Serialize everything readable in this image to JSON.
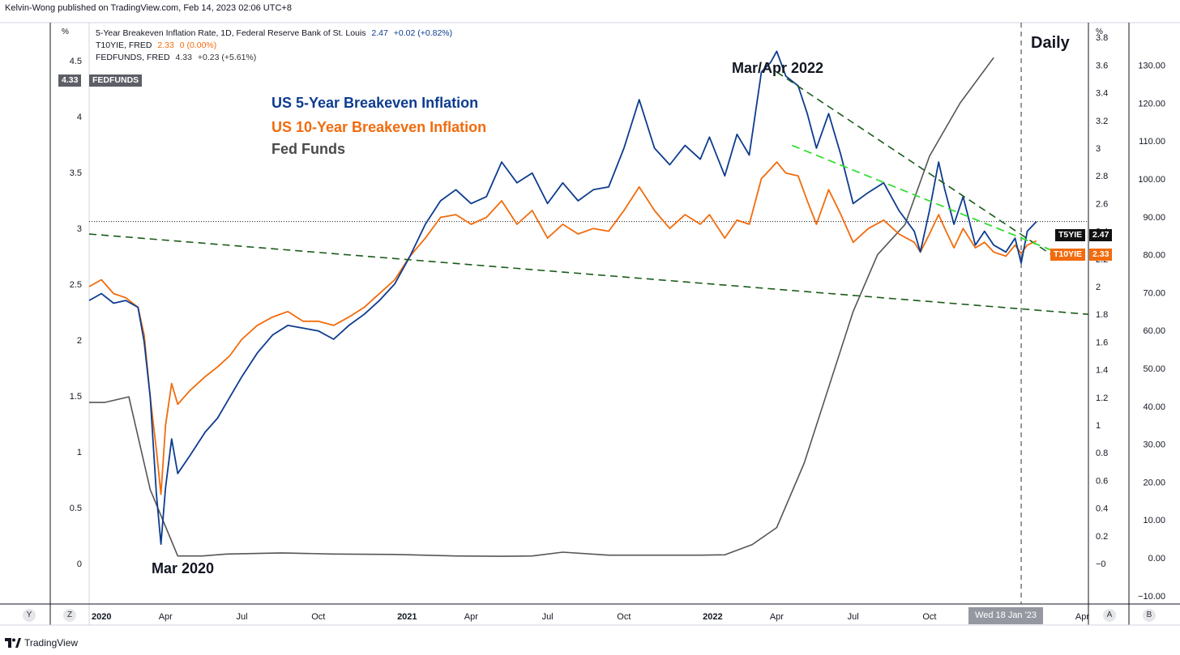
{
  "header": {
    "publisher": "Kelvin-Wong published on TradingView.com, Feb 14, 2023 02:06 UTC+8"
  },
  "legend": {
    "rows": [
      {
        "name": "5-Year Breakeven Inflation Rate, 1D, Federal Reserve Bank of St. Louis",
        "value": "2.47",
        "change": "+0.02 (+0.82%)"
      },
      {
        "name": "T10YIE, FRED",
        "value": "2.33",
        "change": "0 (0.00%)"
      },
      {
        "name": "FEDFUNDS, FRED",
        "value": "4.33",
        "change": "+0.23 (+5.61%)"
      }
    ]
  },
  "annotations": {
    "title_5y": "US 5-Year Breakeven Inflation",
    "title_10y": "US 10-Year Breakeven Inflation",
    "title_ff": "Fed Funds",
    "mar2020": "Mar 2020",
    "mar2022": "Mar/Apr 2022",
    "timeframe": "Daily"
  },
  "badges": {
    "fedfunds_value": "4.33",
    "fedfunds_name": "FEDFUNDS",
    "t5_name": "T5YIE",
    "t5_value": "2.47",
    "t10_name": "T10YIE",
    "t10_value": "2.33"
  },
  "crosshair_date": "Wed 18 Jan '23",
  "bottom_buttons": {
    "y": "Y",
    "z": "Z",
    "a": "A",
    "b": "B"
  },
  "footer": {
    "brand": "TradingView"
  },
  "colors": {
    "t5": "#0d3c8f",
    "t10": "#f26b0c",
    "fedfunds": "#555555",
    "trend_dark": "#1a5c1a",
    "trend_light": "#33dd33"
  },
  "chart_data": {
    "type": "line",
    "left_axis": {
      "unit": "%",
      "ticks": [
        "4.5",
        "4",
        "3.5",
        "3",
        "2.5",
        "2",
        "1.5",
        "1",
        "0.5",
        "0"
      ],
      "range": [
        -0.1,
        4.9
      ]
    },
    "mid_axis": {
      "unit": "%",
      "ticks": [
        "3.8",
        "3.6",
        "3.4",
        "3.2",
        "3",
        "2.8",
        "2.6",
        "2.4",
        "2.2",
        "2",
        "1.8",
        "1.6",
        "1.4",
        "1.2",
        "1",
        "0.8",
        "0.6",
        "0.4",
        "0.2",
        "−0"
      ],
      "range": [
        -0.1,
        3.9
      ]
    },
    "right_axis": {
      "ticks": [
        "130.00",
        "120.00",
        "110.00",
        "100.00",
        "90.00",
        "80.00",
        "70.00",
        "60.00",
        "50.00",
        "40.00",
        "30.00",
        "20.00",
        "10.00",
        "0.00",
        "−10.00"
      ],
      "range": [
        -10,
        130
      ]
    },
    "x_ticks": [
      {
        "label": "2020",
        "t": 2020.0,
        "bold": true
      },
      {
        "label": "Apr",
        "t": 2020.25
      },
      {
        "label": "Jul",
        "t": 2020.5
      },
      {
        "label": "Oct",
        "t": 2020.75
      },
      {
        "label": "2021",
        "t": 2021.0,
        "bold": true
      },
      {
        "label": "Apr",
        "t": 2021.25
      },
      {
        "label": "Jul",
        "t": 2021.5
      },
      {
        "label": "Oct",
        "t": 2021.75
      },
      {
        "label": "2022",
        "t": 2022.0,
        "bold": true
      },
      {
        "label": "Apr",
        "t": 2022.25
      },
      {
        "label": "Jul",
        "t": 2022.5
      },
      {
        "label": "Oct",
        "t": 2022.75
      },
      {
        "label": "Apr",
        "t": 2023.25
      }
    ],
    "x_range": [
      2020.0,
      2023.27
    ],
    "series": [
      {
        "name": "T5YIE",
        "color": "#0d3c8f",
        "points": [
          [
            2020.0,
            1.9
          ],
          [
            2020.04,
            1.95
          ],
          [
            2020.08,
            1.88
          ],
          [
            2020.12,
            1.9
          ],
          [
            2020.16,
            1.85
          ],
          [
            2020.18,
            1.6
          ],
          [
            2020.2,
            1.2
          ],
          [
            2020.22,
            0.5
          ],
          [
            2020.235,
            0.14
          ],
          [
            2020.25,
            0.55
          ],
          [
            2020.27,
            0.9
          ],
          [
            2020.29,
            0.65
          ],
          [
            2020.33,
            0.78
          ],
          [
            2020.38,
            0.95
          ],
          [
            2020.42,
            1.05
          ],
          [
            2020.46,
            1.2
          ],
          [
            2020.5,
            1.35
          ],
          [
            2020.55,
            1.52
          ],
          [
            2020.6,
            1.65
          ],
          [
            2020.65,
            1.72
          ],
          [
            2020.7,
            1.7
          ],
          [
            2020.75,
            1.68
          ],
          [
            2020.8,
            1.62
          ],
          [
            2020.85,
            1.72
          ],
          [
            2020.9,
            1.8
          ],
          [
            2020.95,
            1.9
          ],
          [
            2021.0,
            2.02
          ],
          [
            2021.05,
            2.22
          ],
          [
            2021.1,
            2.45
          ],
          [
            2021.15,
            2.62
          ],
          [
            2021.2,
            2.7
          ],
          [
            2021.25,
            2.6
          ],
          [
            2021.3,
            2.65
          ],
          [
            2021.35,
            2.9
          ],
          [
            2021.4,
            2.75
          ],
          [
            2021.45,
            2.82
          ],
          [
            2021.5,
            2.6
          ],
          [
            2021.55,
            2.75
          ],
          [
            2021.6,
            2.62
          ],
          [
            2021.65,
            2.7
          ],
          [
            2021.7,
            2.72
          ],
          [
            2021.75,
            3.0
          ],
          [
            2021.8,
            3.35
          ],
          [
            2021.85,
            3.0
          ],
          [
            2021.9,
            2.88
          ],
          [
            2021.95,
            3.02
          ],
          [
            2022.0,
            2.92
          ],
          [
            2022.03,
            3.08
          ],
          [
            2022.08,
            2.8
          ],
          [
            2022.12,
            3.1
          ],
          [
            2022.16,
            2.95
          ],
          [
            2022.2,
            3.55
          ],
          [
            2022.23,
            3.62
          ],
          [
            2022.25,
            3.7
          ],
          [
            2022.28,
            3.52
          ],
          [
            2022.32,
            3.45
          ],
          [
            2022.35,
            3.25
          ],
          [
            2022.38,
            3.0
          ],
          [
            2022.42,
            3.25
          ],
          [
            2022.46,
            2.95
          ],
          [
            2022.5,
            2.6
          ],
          [
            2022.55,
            2.68
          ],
          [
            2022.6,
            2.75
          ],
          [
            2022.65,
            2.55
          ],
          [
            2022.7,
            2.4
          ],
          [
            2022.72,
            2.25
          ],
          [
            2022.75,
            2.55
          ],
          [
            2022.78,
            2.9
          ],
          [
            2022.8,
            2.7
          ],
          [
            2022.83,
            2.45
          ],
          [
            2022.86,
            2.65
          ],
          [
            2022.9,
            2.3
          ],
          [
            2022.93,
            2.4
          ],
          [
            2022.96,
            2.3
          ],
          [
            2023.0,
            2.25
          ],
          [
            2023.03,
            2.35
          ],
          [
            2023.05,
            2.17
          ],
          [
            2023.07,
            2.4
          ],
          [
            2023.1,
            2.47
          ]
        ]
      },
      {
        "name": "T10YIE",
        "color": "#f26b0c",
        "points": [
          [
            2020.0,
            2.0
          ],
          [
            2020.04,
            2.05
          ],
          [
            2020.08,
            1.95
          ],
          [
            2020.12,
            1.92
          ],
          [
            2020.16,
            1.85
          ],
          [
            2020.18,
            1.65
          ],
          [
            2020.2,
            1.2
          ],
          [
            2020.22,
            0.82
          ],
          [
            2020.235,
            0.5
          ],
          [
            2020.25,
            1.0
          ],
          [
            2020.27,
            1.3
          ],
          [
            2020.29,
            1.15
          ],
          [
            2020.33,
            1.25
          ],
          [
            2020.38,
            1.35
          ],
          [
            2020.42,
            1.42
          ],
          [
            2020.46,
            1.5
          ],
          [
            2020.5,
            1.62
          ],
          [
            2020.55,
            1.72
          ],
          [
            2020.6,
            1.78
          ],
          [
            2020.65,
            1.82
          ],
          [
            2020.7,
            1.75
          ],
          [
            2020.75,
            1.75
          ],
          [
            2020.8,
            1.72
          ],
          [
            2020.85,
            1.78
          ],
          [
            2020.9,
            1.85
          ],
          [
            2020.95,
            1.95
          ],
          [
            2021.0,
            2.05
          ],
          [
            2021.05,
            2.22
          ],
          [
            2021.1,
            2.35
          ],
          [
            2021.15,
            2.5
          ],
          [
            2021.2,
            2.52
          ],
          [
            2021.25,
            2.45
          ],
          [
            2021.3,
            2.5
          ],
          [
            2021.35,
            2.62
          ],
          [
            2021.4,
            2.45
          ],
          [
            2021.45,
            2.55
          ],
          [
            2021.5,
            2.35
          ],
          [
            2021.55,
            2.45
          ],
          [
            2021.6,
            2.38
          ],
          [
            2021.65,
            2.42
          ],
          [
            2021.7,
            2.4
          ],
          [
            2021.75,
            2.55
          ],
          [
            2021.8,
            2.72
          ],
          [
            2021.85,
            2.55
          ],
          [
            2021.9,
            2.42
          ],
          [
            2021.95,
            2.52
          ],
          [
            2022.0,
            2.45
          ],
          [
            2022.03,
            2.52
          ],
          [
            2022.08,
            2.35
          ],
          [
            2022.12,
            2.48
          ],
          [
            2022.16,
            2.45
          ],
          [
            2022.2,
            2.78
          ],
          [
            2022.23,
            2.85
          ],
          [
            2022.25,
            2.9
          ],
          [
            2022.28,
            2.82
          ],
          [
            2022.32,
            2.8
          ],
          [
            2022.35,
            2.62
          ],
          [
            2022.38,
            2.45
          ],
          [
            2022.42,
            2.7
          ],
          [
            2022.46,
            2.52
          ],
          [
            2022.5,
            2.32
          ],
          [
            2022.55,
            2.42
          ],
          [
            2022.6,
            2.48
          ],
          [
            2022.65,
            2.38
          ],
          [
            2022.7,
            2.32
          ],
          [
            2022.72,
            2.25
          ],
          [
            2022.75,
            2.38
          ],
          [
            2022.78,
            2.52
          ],
          [
            2022.8,
            2.42
          ],
          [
            2022.83,
            2.28
          ],
          [
            2022.86,
            2.42
          ],
          [
            2022.9,
            2.28
          ],
          [
            2022.93,
            2.32
          ],
          [
            2022.96,
            2.25
          ],
          [
            2023.0,
            2.22
          ],
          [
            2023.03,
            2.3
          ],
          [
            2023.05,
            2.24
          ],
          [
            2023.07,
            2.3
          ],
          [
            2023.1,
            2.33
          ]
        ]
      },
      {
        "name": "FEDFUNDS",
        "color": "#555555",
        "axis": "right",
        "points": [
          [
            2020.0,
            41.0
          ],
          [
            2020.05,
            41.0
          ],
          [
            2020.13,
            42.5
          ],
          [
            2020.2,
            18.0
          ],
          [
            2020.29,
            0.5
          ],
          [
            2020.37,
            0.5
          ],
          [
            2020.45,
            1.0
          ],
          [
            2020.63,
            1.3
          ],
          [
            2020.8,
            1.0
          ],
          [
            2021.0,
            0.9
          ],
          [
            2021.2,
            0.5
          ],
          [
            2021.35,
            0.4
          ],
          [
            2021.45,
            0.5
          ],
          [
            2021.55,
            1.5
          ],
          [
            2021.7,
            0.7
          ],
          [
            2022.0,
            0.7
          ],
          [
            2022.08,
            0.8
          ],
          [
            2022.17,
            3.5
          ],
          [
            2022.25,
            8.0
          ],
          [
            2022.34,
            25.0
          ],
          [
            2022.42,
            45.0
          ],
          [
            2022.5,
            65.0
          ],
          [
            2022.58,
            80.0
          ],
          [
            2022.67,
            88.0
          ],
          [
            2022.75,
            106.0
          ],
          [
            2022.85,
            120.0
          ],
          [
            2022.96,
            132.0
          ]
        ]
      }
    ],
    "reference_levels": [
      {
        "value": 2.47,
        "label": "T5YIE"
      }
    ],
    "crosshair_t": 2023.05,
    "trendlines": [
      {
        "style": "dark-dashed",
        "from": [
          2020.0,
          2.38
        ],
        "to": [
          2023.27,
          1.8
        ],
        "axis": "mid"
      },
      {
        "style": "dark-dashed",
        "from": [
          2022.25,
          3.55
        ],
        "to": [
          2023.17,
          2.2
        ],
        "axis": "mid"
      },
      {
        "style": "light-dashed",
        "from": [
          2022.3,
          3.02
        ],
        "to": [
          2023.22,
          2.2
        ],
        "axis": "mid"
      }
    ]
  }
}
